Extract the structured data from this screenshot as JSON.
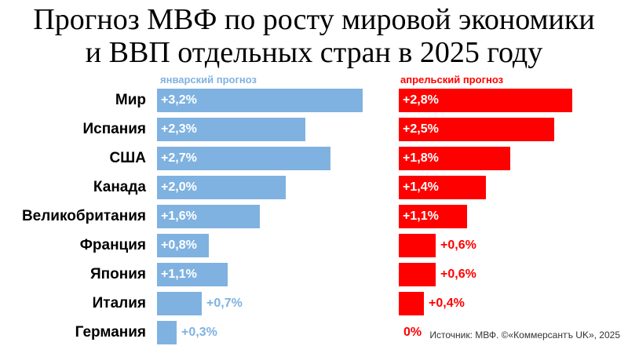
{
  "title_line1": "Прогноз МВФ по росту мировой экономики",
  "title_line2": "и ВВП отдельных стран в 2025 году",
  "legend_january": "январский прогноз",
  "legend_april": "апрельский прогноз",
  "source": "Источник: МВФ. ©«Коммерсантъ UK», 2025",
  "colors": {
    "january": "#7fb2e0",
    "april": "#ff0000"
  },
  "chart_data": {
    "type": "bar",
    "orientation": "horizontal",
    "categories": [
      "Мир",
      "Испания",
      "США",
      "Канада",
      "Великобритания",
      "Франция",
      "Япония",
      "Италия",
      "Германия"
    ],
    "series": [
      {
        "name": "январский прогноз",
        "values": [
          3.2,
          2.3,
          2.7,
          2.0,
          1.6,
          0.8,
          1.1,
          0.7,
          0.3
        ],
        "labels": [
          "+3,2%",
          "+2,3%",
          "+2,7%",
          "+2,0%",
          "+1,6%",
          "+0,8%",
          "+1,1%",
          "+0,7%",
          "+0,3%"
        ]
      },
      {
        "name": "апрельский прогноз",
        "values": [
          2.8,
          2.5,
          1.8,
          1.4,
          1.1,
          0.6,
          0.6,
          0.4,
          0
        ],
        "labels": [
          "+2,8%",
          "+2,5%",
          "+1,8%",
          "+1,4%",
          "+1,1%",
          "+0,6%",
          "+0,6%",
          "+0,4%",
          "0%"
        ]
      }
    ],
    "unit": "%"
  }
}
